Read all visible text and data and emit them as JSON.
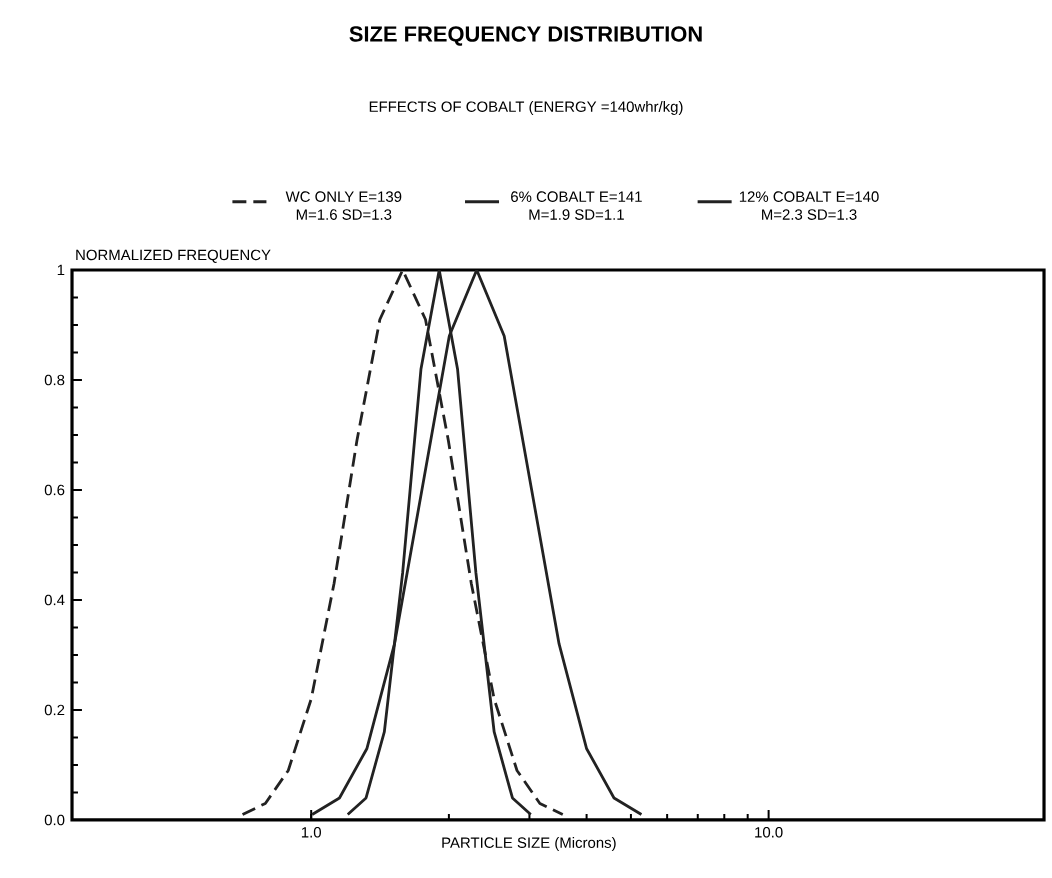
{
  "chart_data": {
    "type": "line",
    "title": "SIZE FREQUENCY DISTRIBUTION",
    "subtitle": "EFFECTS OF COBALT (ENERGY =140whr/kg)",
    "xlabel": "PARTICLE SIZE (Microns)",
    "ylabel": "NORMALIZED FREQUENCY",
    "log": "x",
    "legend": "top",
    "marker": "none",
    "xlim": [
      0.3,
      40
    ],
    "ylim": [
      0,
      1
    ],
    "xticks": [
      {
        "value": 1,
        "label": "1.0"
      },
      {
        "value": 10,
        "label": "10.0"
      }
    ],
    "yticks": [
      {
        "value": 0,
        "label": "0.0"
      },
      0.2,
      0.4,
      0.6,
      0.8,
      {
        "value": 1,
        "label": "1"
      }
    ],
    "series": [
      {
        "name": "WC ONLY E=139 M=1.6 SD=1.3",
        "color": "#222222",
        "line_style": "dashed",
        "x": [
          0.708,
          0.794,
          0.891,
          1.0,
          1.122,
          1.259,
          1.413,
          1.585,
          1.778,
          1.995,
          2.239,
          2.512,
          2.818,
          3.162,
          3.548
        ],
        "values": [
          0.01,
          0.03,
          0.09,
          0.22,
          0.43,
          0.69,
          0.91,
          1,
          0.91,
          0.69,
          0.43,
          0.22,
          0.09,
          0.03,
          0.01
        ]
      },
      {
        "name": "6% COBALT E=141 M=1.9 SD=1.1",
        "color": "#222222",
        "line_style": "solid",
        "x": [
          1.202,
          1.318,
          1.445,
          1.585,
          1.738,
          1.905,
          2.089,
          2.291,
          2.512,
          2.754,
          3.02
        ],
        "values": [
          0.01,
          0.04,
          0.16,
          0.45,
          0.82,
          1,
          0.82,
          0.45,
          0.16,
          0.04,
          0.01
        ]
      },
      {
        "name": "12% COBALT E=140 M=2.3 SD=1.3",
        "color": "#222222",
        "line_style": "solid",
        "x": [
          1.005,
          1.153,
          1.324,
          1.521,
          1.746,
          2.004,
          2.301,
          2.642,
          3.034,
          3.483,
          3.999,
          4.592,
          5.272
        ],
        "values": [
          0.01,
          0.04,
          0.13,
          0.32,
          0.6,
          0.88,
          1,
          0.88,
          0.6,
          0.32,
          0.13,
          0.04,
          0.01
        ]
      }
    ]
  }
}
